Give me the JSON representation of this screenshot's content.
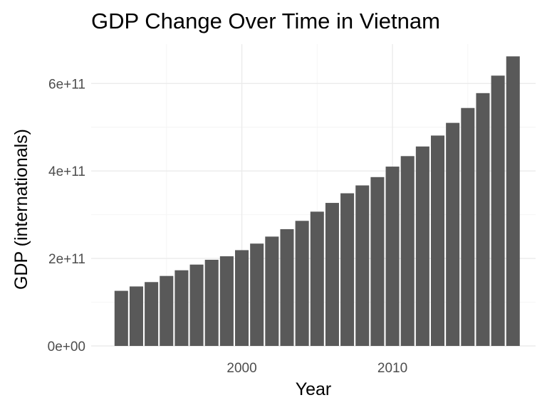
{
  "chart_data": {
    "type": "bar",
    "title": "GDP Change Over Time in Vietnam",
    "xlabel": "Year",
    "ylabel": "GDP (internationals)",
    "x": [
      1992,
      1993,
      1994,
      1995,
      1996,
      1997,
      1998,
      1999,
      2000,
      2001,
      2002,
      2003,
      2004,
      2005,
      2006,
      2007,
      2008,
      2009,
      2010,
      2011,
      2012,
      2013,
      2014,
      2015,
      2016,
      2017,
      2018
    ],
    "values": [
      126000000000.0,
      136000000000.0,
      146000000000.0,
      160000000000.0,
      173000000000.0,
      186000000000.0,
      197000000000.0,
      205000000000.0,
      219000000000.0,
      234000000000.0,
      250000000000.0,
      267000000000.0,
      286000000000.0,
      307000000000.0,
      327000000000.0,
      349000000000.0,
      367000000000.0,
      386000000000.0,
      410000000000.0,
      434000000000.0,
      456000000000.0,
      481000000000.0,
      510000000000.0,
      544000000000.0,
      578000000000.0,
      618000000000.0,
      662000000000.0
    ],
    "xlim": [
      1990,
      2019.5
    ],
    "ylim": [
      0,
      690000000000.0
    ],
    "x_ticks": [
      {
        "value": 2000,
        "label": "2000"
      },
      {
        "value": 2010,
        "label": "2010"
      }
    ],
    "x_minor_ticks": [
      1995,
      2005,
      2015
    ],
    "y_ticks": [
      {
        "value": 0,
        "label": "0e+00"
      },
      {
        "value": 200000000000.0,
        "label": "2e+11"
      },
      {
        "value": 400000000000.0,
        "label": "4e+11"
      },
      {
        "value": 600000000000.0,
        "label": "6e+11"
      }
    ],
    "y_minor_ticks": [
      100000000000.0,
      300000000000.0,
      500000000000.0
    ],
    "grid": true,
    "legend": "none",
    "colors": {
      "bar": "#595959",
      "grid_major": "#ebebeb",
      "grid_minor": "#f4f4f4",
      "tick_text": "#4d4d4d"
    }
  }
}
